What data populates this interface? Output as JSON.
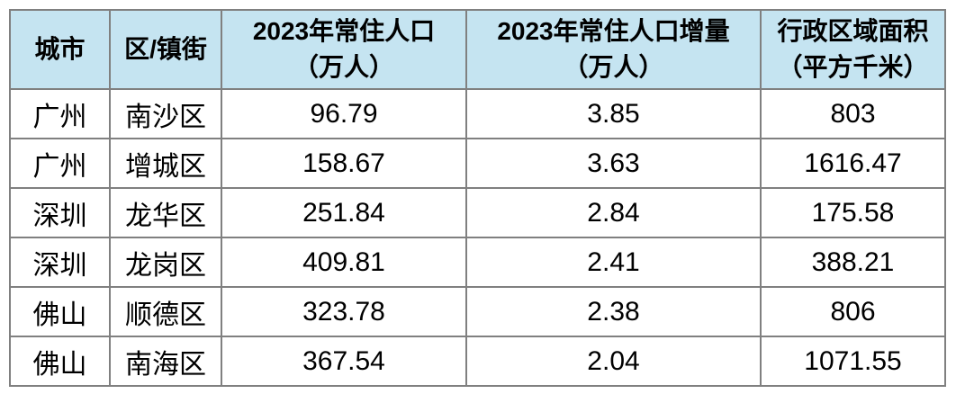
{
  "chart_data": {
    "type": "table",
    "title": "",
    "columns": [
      "城市",
      "区/镇街",
      "2023年常住人口（万人）",
      "2023年常住人口增量（万人）",
      "行政区域面积（平方千米）"
    ],
    "rows": [
      [
        "广州",
        "南沙区",
        "96.79",
        "3.85",
        "803"
      ],
      [
        "广州",
        "增城区",
        "158.67",
        "3.63",
        "1616.47"
      ],
      [
        "深圳",
        "龙华区",
        "251.84",
        "2.84",
        "175.58"
      ],
      [
        "深圳",
        "龙岗区",
        "409.81",
        "2.41",
        "388.21"
      ],
      [
        "佛山",
        "顺德区",
        "323.78",
        "2.38",
        "806"
      ],
      [
        "佛山",
        "南海区",
        "367.54",
        "2.04",
        "1071.55"
      ]
    ]
  },
  "table": {
    "headers": [
      "城市",
      "区/镇街",
      "2023年常住人口\n（万人）",
      "2023年常住人口增量\n（万人）",
      "行政区域面积\n（平方千米）"
    ]
  },
  "colors": {
    "header_bg": "#c5e4f1",
    "border": "#808080",
    "text": "#000000",
    "row_bg": "#ffffff"
  }
}
